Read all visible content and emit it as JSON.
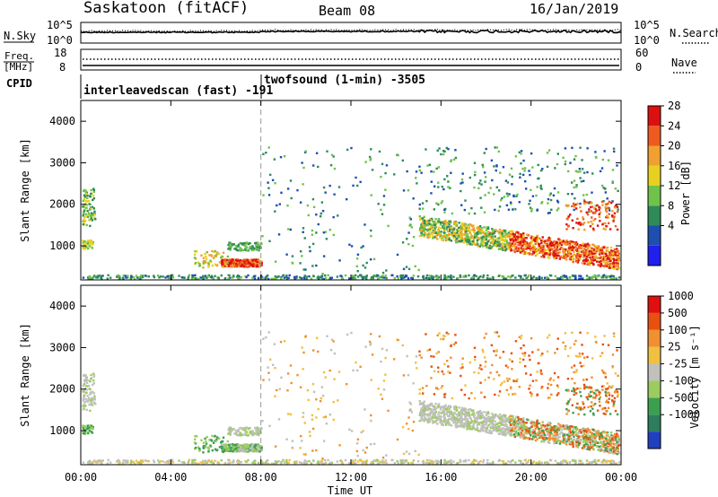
{
  "header": {
    "title": "Saskatoon (fitACF)",
    "beam": "Beam 08",
    "date": "16/Jan/2019"
  },
  "noise_panel": {
    "left_label": "N.Sky",
    "left_ticks": [
      "10^5",
      "10^0"
    ],
    "right_ticks": [
      "10^5",
      "10^0"
    ],
    "right_label": "N.Search"
  },
  "freq_panel": {
    "left_label_line1": "Freq.",
    "left_label_line2": "[MHz]",
    "left_ticks": [
      "18",
      "8"
    ],
    "right_ticks": [
      "60",
      "0"
    ],
    "right_label": "Nave"
  },
  "cpid_panel": {
    "label": "CPID",
    "program1": "interleavedscan (fast) -191",
    "program2": "twofsound (1-min) -3505"
  },
  "power_panel": {
    "ylabel": "Slant Range [km]",
    "yticks": [
      "4000",
      "3000",
      "2000",
      "1000"
    ],
    "colorbar_label": "Power [dB]",
    "colorbar_ticks": [
      "28",
      "24",
      "20",
      "16",
      "12",
      "8",
      "4"
    ],
    "colors": [
      "#2020ee",
      "#1e4fb0",
      "#2e8b57",
      "#6fc24a",
      "#e8d020",
      "#f0a030",
      "#ee5a20",
      "#dd1010"
    ]
  },
  "velocity_panel": {
    "ylabel": "Slant Range [km]",
    "yticks": [
      "4000",
      "3000",
      "2000",
      "1000"
    ],
    "colorbar_label": "Velocity [m s⁻¹]",
    "colorbar_ticks": [
      "1000",
      "500",
      "100",
      "25",
      "-25",
      "-100",
      "-500",
      "-1000"
    ],
    "colors": [
      "#2040c0",
      "#2e7d5e",
      "#3aa050",
      "#9ccc60",
      "#c0c0bc",
      "#f0c040",
      "#f09030",
      "#e85010",
      "#e01010"
    ]
  },
  "xaxis": {
    "ticks": [
      "00:00",
      "04:00",
      "08:00",
      "12:00",
      "16:00",
      "20:00",
      "00:00"
    ],
    "label": "Time UT"
  },
  "chart_data": {
    "type": "heatmap",
    "title": "Saskatoon (fitACF)",
    "xlabel": "Time UT",
    "ylabel": "Slant Range [km]",
    "x_range_hours": [
      0,
      24
    ],
    "y_range_km": [
      180,
      4500
    ],
    "program_change_hour": 8,
    "series": [
      {
        "name": "Power [dB]",
        "range": [
          0,
          32
        ]
      },
      {
        "name": "Velocity [m s⁻¹]",
        "range": [
          -1000,
          1000
        ]
      }
    ]
  }
}
